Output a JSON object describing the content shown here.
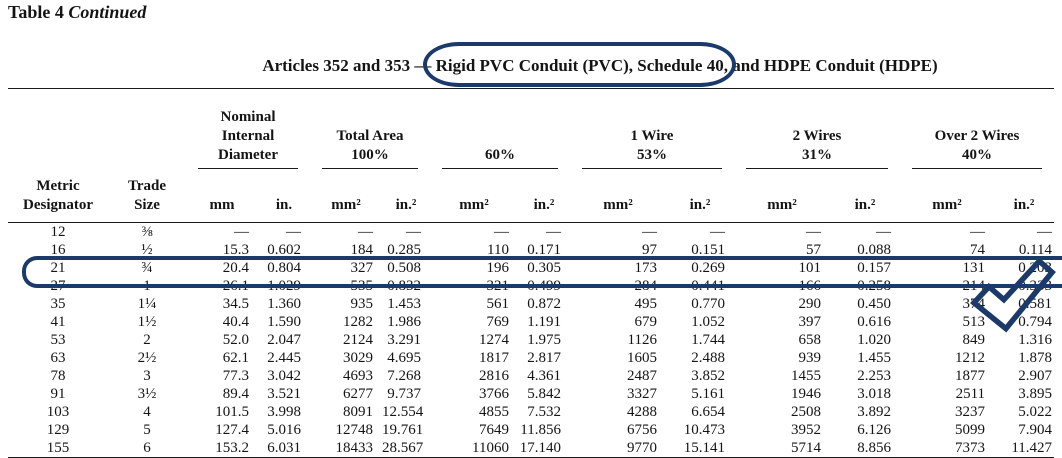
{
  "page": {
    "doc_label": "Table 4",
    "doc_label_suffix": "Continued",
    "title_prefix": "Articles 352 and 353 — ",
    "title_circled": "Rigid PVC Conduit (PVC), Schedule 40,",
    "title_suffix": " and HDPE Conduit (HDPE)"
  },
  "annotations": {
    "ink_color": "#1c3a69",
    "circled_title_text": "Rigid PVC Conduit (PVC), Schedule 40,",
    "circled_row_metric_designator": "27"
  },
  "table": {
    "header": {
      "metric_designator": "Metric\nDesignator",
      "trade_size": "Trade\nSize"
    },
    "groups": [
      {
        "title": "Nominal\nInternal\nDiameter",
        "units": [
          "mm",
          "in."
        ]
      },
      {
        "title": "Total Area\n100%",
        "units": [
          "mm²",
          "in.²"
        ]
      },
      {
        "title": "60%",
        "units": [
          "mm²",
          "in.²"
        ]
      },
      {
        "title": "1 Wire\n53%",
        "units": [
          "mm²",
          "in.²"
        ]
      },
      {
        "title": "2 Wires\n31%",
        "units": [
          "mm²",
          "in.²"
        ]
      },
      {
        "title": "Over 2 Wires\n40%",
        "units": [
          "mm²",
          "in.²"
        ]
      }
    ],
    "rows": [
      [
        "12",
        "⅜",
        "—",
        "—",
        "—",
        "—",
        "—",
        "—",
        "—",
        "—",
        "—",
        "—",
        "—",
        "—"
      ],
      [
        "16",
        "½",
        "15.3",
        "0.602",
        "184",
        "0.285",
        "110",
        "0.171",
        "97",
        "0.151",
        "57",
        "0.088",
        "74",
        "0.114"
      ],
      [
        "21",
        "¾",
        "20.4",
        "0.804",
        "327",
        "0.508",
        "196",
        "0.305",
        "173",
        "0.269",
        "101",
        "0.157",
        "131",
        "0.203"
      ],
      [
        "27",
        "1",
        "26.1",
        "1.029",
        "535",
        "0.832",
        "321",
        "0.499",
        "284",
        "0.441",
        "166",
        "0.258",
        "214",
        "0.333"
      ],
      [
        "35",
        "1¼",
        "34.5",
        "1.360",
        "935",
        "1.453",
        "561",
        "0.872",
        "495",
        "0.770",
        "290",
        "0.450",
        "374",
        "0.581"
      ],
      [
        "41",
        "1½",
        "40.4",
        "1.590",
        "1282",
        "1.986",
        "769",
        "1.191",
        "679",
        "1.052",
        "397",
        "0.616",
        "513",
        "0.794"
      ],
      [
        "53",
        "2",
        "52.0",
        "2.047",
        "2124",
        "3.291",
        "1274",
        "1.975",
        "1126",
        "1.744",
        "658",
        "1.020",
        "849",
        "1.316"
      ],
      [
        "63",
        "2½",
        "62.1",
        "2.445",
        "3029",
        "4.695",
        "1817",
        "2.817",
        "1605",
        "2.488",
        "939",
        "1.455",
        "1212",
        "1.878"
      ],
      [
        "78",
        "3",
        "77.3",
        "3.042",
        "4693",
        "7.268",
        "2816",
        "4.361",
        "2487",
        "3.852",
        "1455",
        "2.253",
        "1877",
        "2.907"
      ],
      [
        "91",
        "3½",
        "89.4",
        "3.521",
        "6277",
        "9.737",
        "3766",
        "5.842",
        "3327",
        "5.161",
        "1946",
        "3.018",
        "2511",
        "3.895"
      ],
      [
        "103",
        "4",
        "101.5",
        "3.998",
        "8091",
        "12.554",
        "4855",
        "7.532",
        "4288",
        "6.654",
        "2508",
        "3.892",
        "3237",
        "5.022"
      ],
      [
        "129",
        "5",
        "127.4",
        "5.016",
        "12748",
        "19.761",
        "7649",
        "11.856",
        "6756",
        "10.473",
        "3952",
        "6.126",
        "5099",
        "7.904"
      ],
      [
        "155",
        "6",
        "153.2",
        "6.031",
        "18433",
        "28.567",
        "11060",
        "17.140",
        "9770",
        "15.141",
        "5714",
        "8.856",
        "7373",
        "11.427"
      ]
    ]
  }
}
